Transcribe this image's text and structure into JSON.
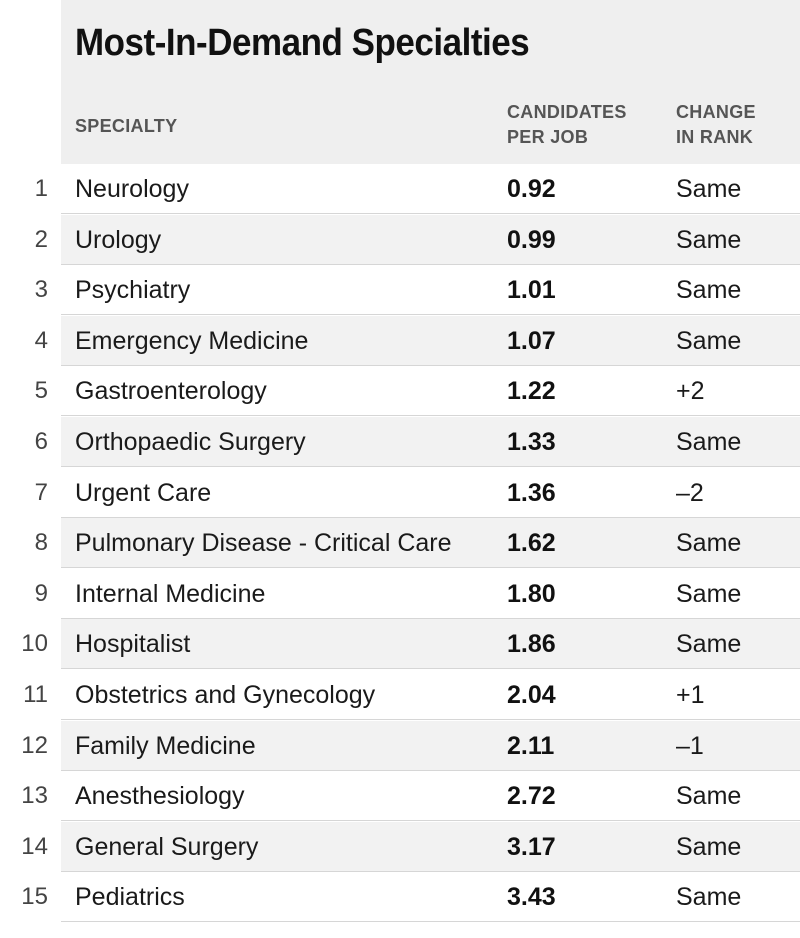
{
  "title": "Most-In-Demand Specialties",
  "columns": {
    "specialty": "SPECIALTY",
    "candidates_line1": "CANDIDATES",
    "candidates_line2": "PER JOB",
    "change_line1": "CHANGE",
    "change_line2": "IN RANK"
  },
  "chart_data": {
    "type": "table",
    "title": "Most-In-Demand Specialties",
    "headers": [
      "",
      "SPECIALTY",
      "CANDIDATES PER JOB",
      "CHANGE IN RANK"
    ],
    "rows": [
      {
        "rank": "1",
        "specialty": "Neurology",
        "candidates_per_job": "0.92",
        "change": "Same"
      },
      {
        "rank": "2",
        "specialty": "Urology",
        "candidates_per_job": "0.99",
        "change": "Same"
      },
      {
        "rank": "3",
        "specialty": "Psychiatry",
        "candidates_per_job": "1.01",
        "change": "Same"
      },
      {
        "rank": "4",
        "specialty": "Emergency Medicine",
        "candidates_per_job": "1.07",
        "change": "Same"
      },
      {
        "rank": "5",
        "specialty": "Gastroenterology",
        "candidates_per_job": "1.22",
        "change": "+2"
      },
      {
        "rank": "6",
        "specialty": "Orthopaedic Surgery",
        "candidates_per_job": "1.33",
        "change": "Same"
      },
      {
        "rank": "7",
        "specialty": "Urgent Care",
        "candidates_per_job": "1.36",
        "change": "–2"
      },
      {
        "rank": "8",
        "specialty": "Pulmonary Disease - Critical Care",
        "candidates_per_job": "1.62",
        "change": "Same"
      },
      {
        "rank": "9",
        "specialty": "Internal Medicine",
        "candidates_per_job": "1.80",
        "change": "Same"
      },
      {
        "rank": "10",
        "specialty": "Hospitalist",
        "candidates_per_job": "1.86",
        "change": "Same"
      },
      {
        "rank": "11",
        "specialty": "Obstetrics and Gynecology",
        "candidates_per_job": "2.04",
        "change": "+1"
      },
      {
        "rank": "12",
        "specialty": "Family Medicine",
        "candidates_per_job": "2.11",
        "change": "–1"
      },
      {
        "rank": "13",
        "specialty": "Anesthesiology",
        "candidates_per_job": "2.72",
        "change": "Same"
      },
      {
        "rank": "14",
        "specialty": "General Surgery",
        "candidates_per_job": "3.17",
        "change": "Same"
      },
      {
        "rank": "15",
        "specialty": "Pediatrics",
        "candidates_per_job": "3.43",
        "change": "Same"
      }
    ]
  }
}
